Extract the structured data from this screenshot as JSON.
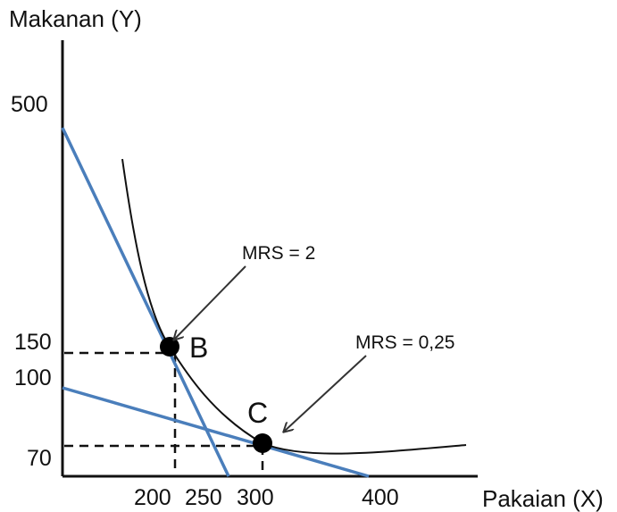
{
  "chart_data": {
    "type": "line",
    "ylabel": "Makanan (Y)",
    "xlabel": "Pakaian (X)",
    "y_ticks": [
      "500",
      "150",
      "100",
      "70"
    ],
    "x_ticks": [
      "200",
      "250",
      "300",
      "400"
    ],
    "points": [
      {
        "label": "B",
        "x": 200,
        "y": 150
      },
      {
        "label": "C",
        "x": 300,
        "y": 70
      }
    ],
    "annotations": [
      {
        "text": "MRS = 2",
        "target": "B"
      },
      {
        "text": "MRS = 0,25",
        "target": "C"
      }
    ],
    "lines": [
      {
        "name": "",
        "points": [
          [
            0,
            500
          ],
          [
            250,
            0
          ]
        ]
      },
      {
        "name": "",
        "points": [
          [
            0,
            100
          ],
          [
            400,
            0
          ]
        ]
      }
    ],
    "colors": {
      "budget_lines": "#4a7ebb",
      "curve": "#111111",
      "axes": "#111111"
    }
  }
}
